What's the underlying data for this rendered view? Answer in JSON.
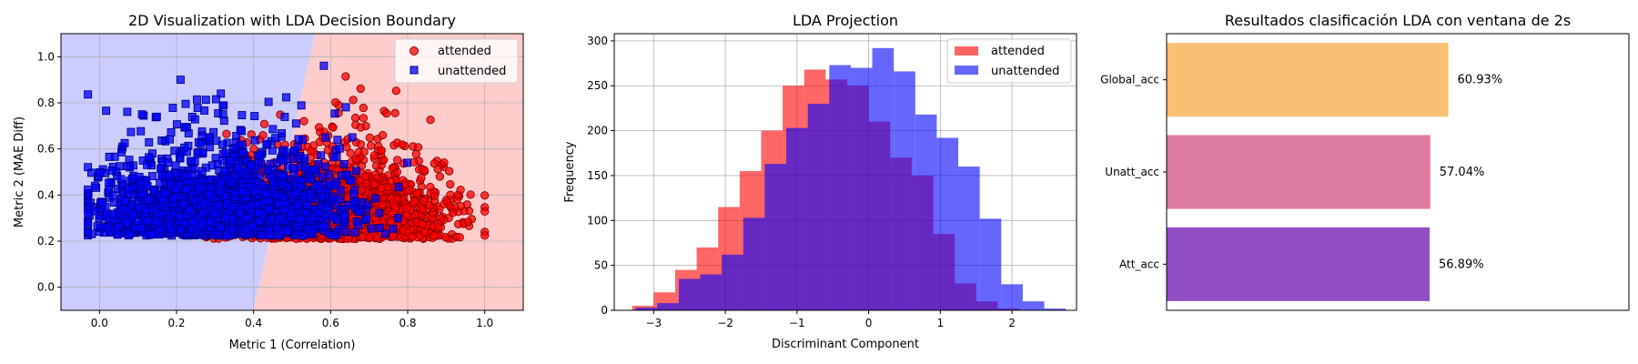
{
  "colors": {
    "attended": "#ff0000",
    "unattended": "#0000ff",
    "region_attended": "#ffcccc",
    "region_unattended": "#ccccff",
    "hist_overlap": "#6a22c4",
    "global_bar": "#f9bf72",
    "unatt_bar": "#dc7a9f",
    "att_bar": "#914ec4"
  },
  "chart_data": [
    {
      "type": "scatter",
      "title": "2D Visualization with LDA Decision Boundary",
      "xlabel": "Metric 1 (Correlation)",
      "ylabel": "Metric 2 (MAE Diff)",
      "xlim": [
        -0.1,
        1.1
      ],
      "ylim": [
        -0.1,
        1.1
      ],
      "xticks": [
        "0.0",
        "0.2",
        "0.4",
        "0.6",
        "0.8",
        "1.0"
      ],
      "yticks": [
        "0.0",
        "0.2",
        "0.4",
        "0.6",
        "0.8",
        "1.0"
      ],
      "grid": true,
      "legend_position": "upper right",
      "decision_boundary": [
        [
          0.56,
          1.1
        ],
        [
          0.54,
          0.95
        ],
        [
          0.52,
          0.8
        ],
        [
          0.5,
          0.65
        ],
        [
          0.48,
          0.5
        ],
        [
          0.46,
          0.35
        ],
        [
          0.44,
          0.2
        ],
        [
          0.42,
          0.05
        ],
        [
          0.4,
          -0.1
        ]
      ],
      "series": [
        {
          "name": "attended",
          "marker": "circle",
          "count": 2000,
          "x_mean": 0.62,
          "x_sd": 0.14,
          "y_mean": 0.3,
          "y_sd": 0.15,
          "x_range": [
            0.02,
            1.0
          ],
          "y_range": [
            0.02,
            1.0
          ]
        },
        {
          "name": "unattended",
          "marker": "square",
          "count": 2000,
          "x_mean": 0.32,
          "x_sd": 0.16,
          "y_mean": 0.32,
          "y_sd": 0.16,
          "x_range": [
            -0.03,
            0.98
          ],
          "y_range": [
            0.02,
            1.0
          ]
        }
      ]
    },
    {
      "type": "histogram",
      "title": "LDA Projection",
      "xlabel": "Discriminant Component",
      "ylabel": "Frequency",
      "xlim": [
        -3.55,
        2.9
      ],
      "ylim": [
        0,
        308
      ],
      "xticks": [
        -3,
        -2,
        -1,
        0,
        1,
        2
      ],
      "yticks": [
        0,
        50,
        100,
        150,
        200,
        250,
        300
      ],
      "grid": true,
      "legend_position": "upper right",
      "series": [
        {
          "name": "attended",
          "bin_start": -3.3,
          "bin_width": 0.3,
          "counts": [
            5,
            20,
            45,
            70,
            115,
            155,
            200,
            250,
            268,
            257,
            250,
            210,
            170,
            150,
            85,
            30,
            10,
            2,
            0,
            0
          ]
        },
        {
          "name": "unattended",
          "bin_start": -3.25,
          "bin_width": 0.3,
          "counts": [
            3,
            8,
            35,
            40,
            62,
            103,
            163,
            203,
            230,
            273,
            270,
            292,
            266,
            218,
            192,
            160,
            102,
            29,
            10,
            2
          ]
        }
      ]
    },
    {
      "type": "bar",
      "orientation": "horizontal",
      "title": "Resultados clasificación LDA con ventana de 2s",
      "categories": [
        "Global_acc",
        "Unatt_acc",
        "Att_acc"
      ],
      "values": [
        60.93,
        57.04,
        56.89
      ],
      "value_labels": [
        "60.93%",
        "57.04%",
        "56.89%"
      ],
      "xlim": [
        0,
        100
      ],
      "grid": false
    }
  ]
}
